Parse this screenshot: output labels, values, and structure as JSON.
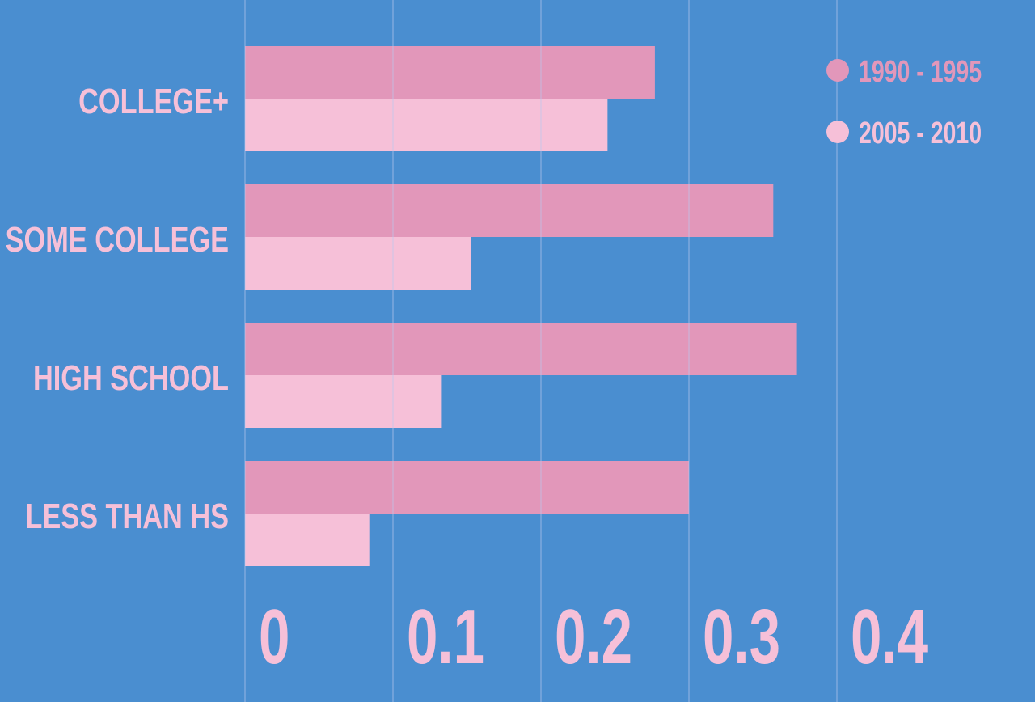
{
  "chart_data": {
    "type": "bar",
    "orientation": "horizontal",
    "categories": [
      "COLLEGE+",
      "SOME COLLEGE",
      "HIGH SCHOOL",
      "LESS THAN HS"
    ],
    "series": [
      {
        "name": "1990 - 1995",
        "values": [
          0.277,
          0.357,
          0.373,
          0.3
        ],
        "color": "#e297ba"
      },
      {
        "name": "2005 - 2010",
        "values": [
          0.245,
          0.153,
          0.133,
          0.084
        ],
        "color": "#f6c0d8"
      }
    ],
    "x_ticks": [
      "0",
      "0.1",
      "0.2",
      "0.3",
      "0.4"
    ],
    "xlim": [
      0,
      0.4
    ],
    "grid": true,
    "legend_position": "top-right",
    "title": "",
    "xlabel": "",
    "ylabel": "",
    "colors": {
      "background": "#4a8ed0",
      "text": "#f6c0d8",
      "grid": "#b9c9ee"
    }
  }
}
